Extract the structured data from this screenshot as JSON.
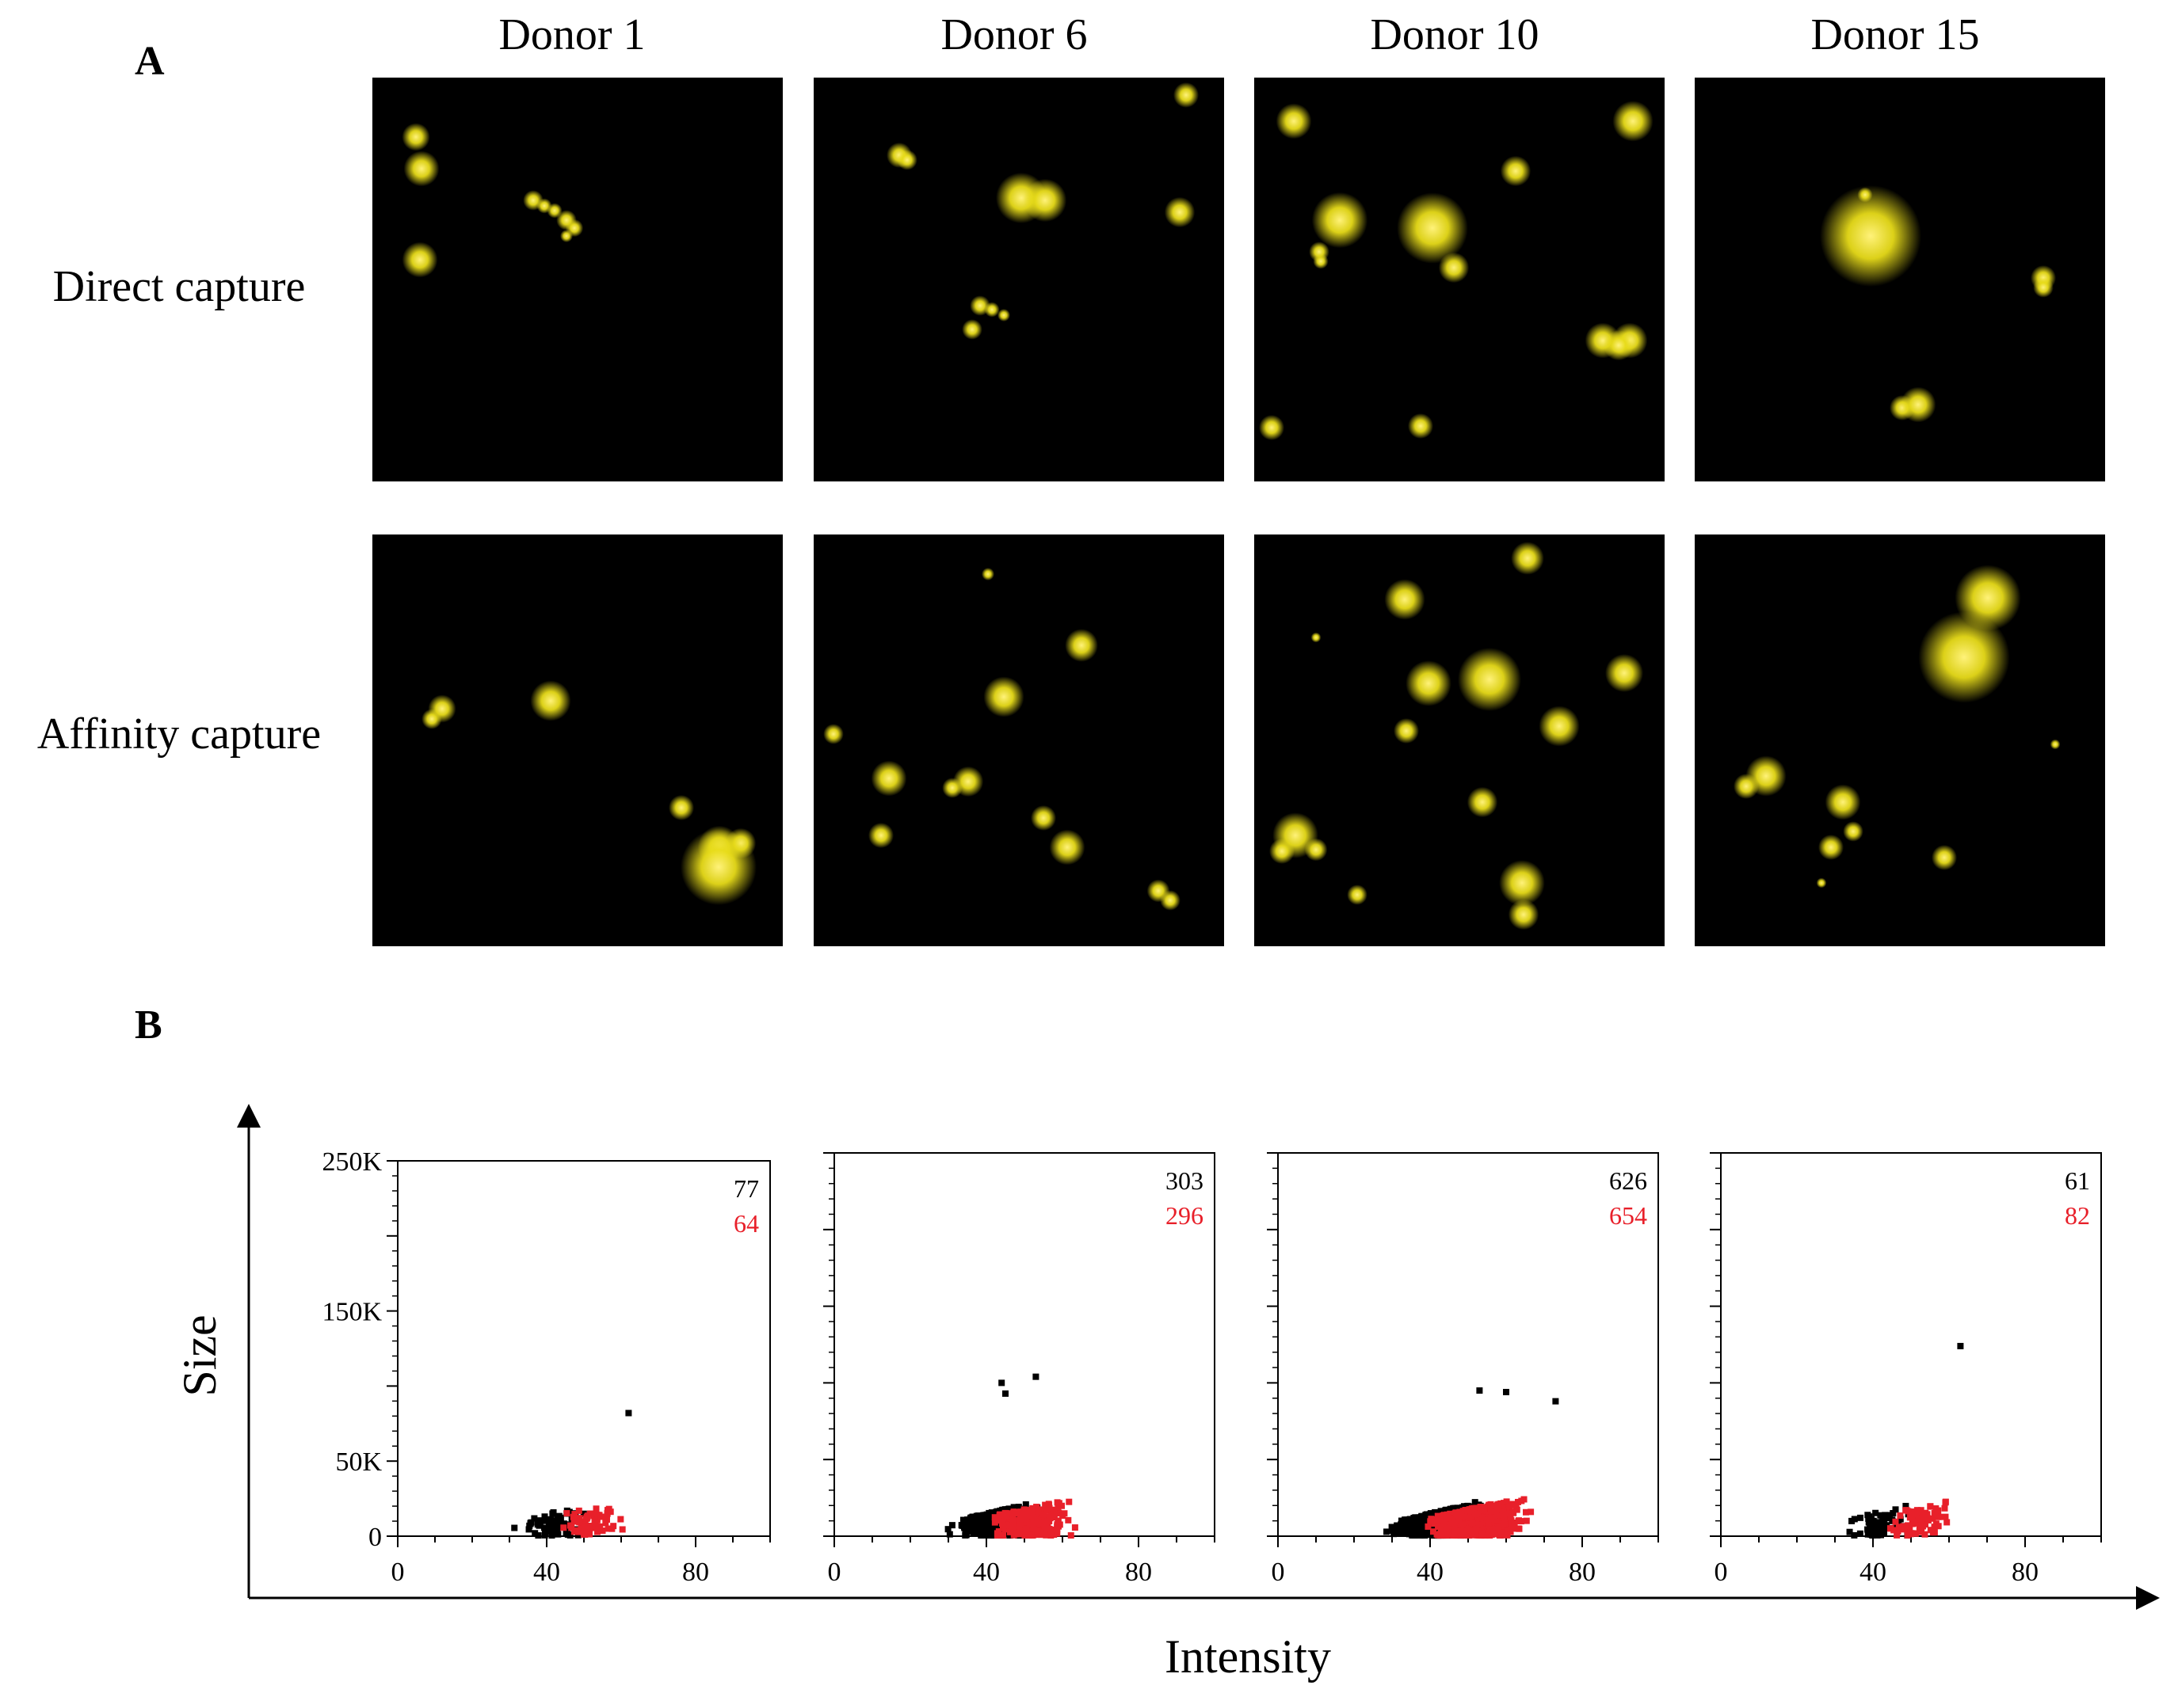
{
  "panel_a": {
    "label": "A",
    "columns": [
      "Donor 1",
      "Donor 6",
      "Donor 10",
      "Donor 15"
    ],
    "rows": [
      "Direct capture",
      "Affinity capture"
    ],
    "fluorescence_color": "#e8dc1a"
  },
  "panel_b": {
    "label": "B",
    "shared_ylabel": "Size",
    "shared_xlabel": "Intensity"
  },
  "colors": {
    "series_black": "#000000",
    "series_red": "#e8202a"
  },
  "chart_data": [
    {
      "type": "scatter",
      "title": "Donor 1",
      "xlabel": "Intensity",
      "ylabel": "Size",
      "xlim": [
        0,
        100
      ],
      "ylim": [
        0,
        250000
      ],
      "xticks": [
        "0",
        "40",
        "80"
      ],
      "yticks": [
        "0",
        "50K",
        "150K",
        "250K"
      ],
      "series": [
        {
          "name": "Direct capture",
          "color": "#000000",
          "count": "77"
        },
        {
          "name": "Affinity capture",
          "color": "#e8202a",
          "count": "64"
        }
      ]
    },
    {
      "type": "scatter",
      "title": "Donor 6",
      "xlabel": "Intensity",
      "ylabel": "Size",
      "xlim": [
        0,
        100
      ],
      "ylim": [
        0,
        250000
      ],
      "xticks": [
        "0",
        "40",
        "80"
      ],
      "series": [
        {
          "name": "Direct capture",
          "color": "#000000",
          "count": "303"
        },
        {
          "name": "Affinity capture",
          "color": "#e8202a",
          "count": "296"
        }
      ]
    },
    {
      "type": "scatter",
      "title": "Donor 10",
      "xlabel": "Intensity",
      "ylabel": "Size",
      "xlim": [
        0,
        100
      ],
      "ylim": [
        0,
        250000
      ],
      "xticks": [
        "0",
        "40",
        "80"
      ],
      "series": [
        {
          "name": "Direct capture",
          "color": "#000000",
          "count": "626"
        },
        {
          "name": "Affinity capture",
          "color": "#e8202a",
          "count": "654"
        }
      ]
    },
    {
      "type": "scatter",
      "title": "Donor 15",
      "xlabel": "Intensity",
      "ylabel": "Size",
      "xlim": [
        0,
        100
      ],
      "ylim": [
        0,
        250000
      ],
      "xticks": [
        "0",
        "40",
        "80"
      ],
      "series": [
        {
          "name": "Direct capture",
          "color": "#000000",
          "count": "61"
        },
        {
          "name": "Affinity capture",
          "color": "#e8202a",
          "count": "82"
        }
      ]
    }
  ]
}
